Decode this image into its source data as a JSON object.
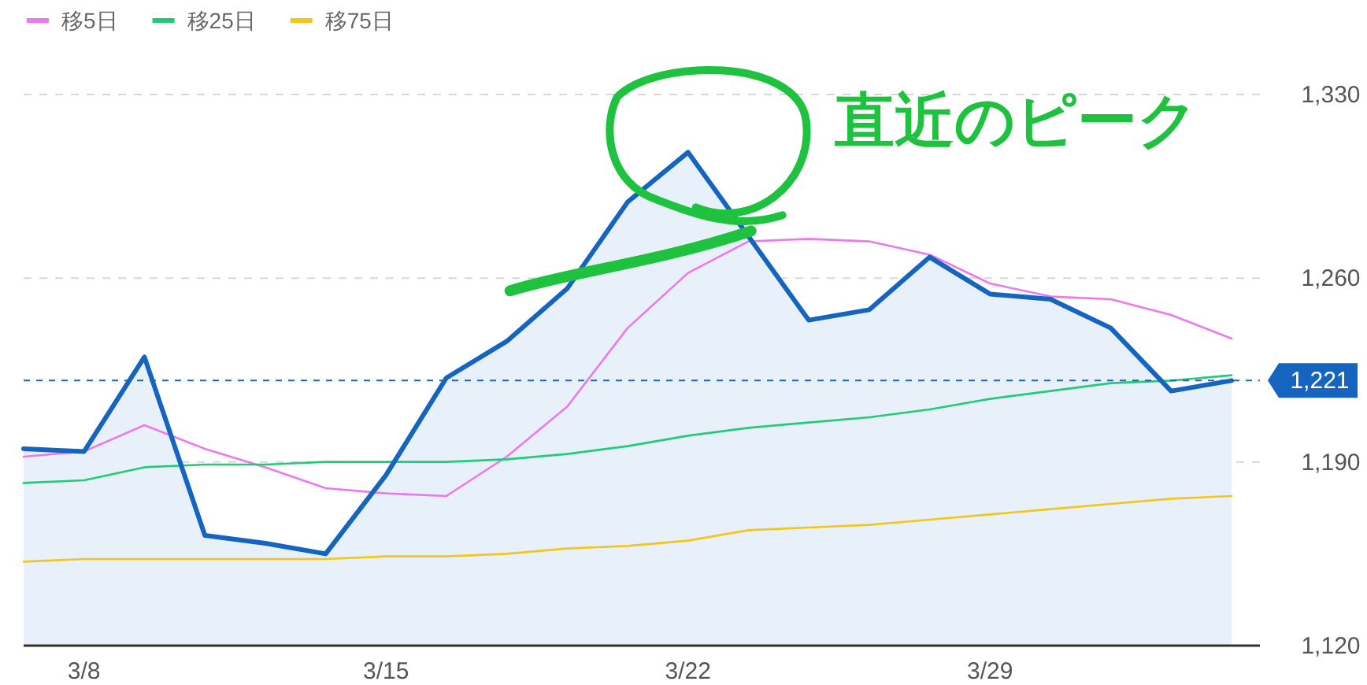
{
  "chart_data": {
    "type": "line",
    "categories": [
      null,
      "3/8",
      null,
      null,
      null,
      null,
      "3/15",
      null,
      null,
      null,
      null,
      "3/22",
      null,
      null,
      null,
      null,
      "3/29",
      null,
      null,
      null,
      null
    ],
    "series": [
      {
        "type": "area",
        "color": "#1565c0",
        "values": [
          1195,
          1194,
          1230,
          1162,
          1159,
          1155,
          1185,
          1222,
          1236,
          1256,
          1289,
          1308,
          1276,
          1244,
          1248,
          1268,
          1254,
          1252,
          1241,
          1217,
          1221
        ]
      },
      {
        "name": "移5日",
        "color": "#ee77ee",
        "values": [
          1192,
          1194,
          1204,
          1195,
          1188,
          1180,
          1178,
          1177,
          1192,
          1211,
          1241,
          1262,
          1274,
          1275,
          1274,
          1269,
          1258,
          1253,
          1252,
          1246,
          1237
        ]
      },
      {
        "name": "移25日",
        "color": "#22cc77",
        "values": [
          1182,
          1183,
          1188,
          1189,
          1189,
          1190,
          1190,
          1190,
          1191,
          1193,
          1196,
          1200,
          1203,
          1205,
          1207,
          1210,
          1214,
          1217,
          1220,
          1221,
          1223
        ]
      },
      {
        "name": "移75日",
        "color": "#f5c518",
        "values": [
          1152,
          1153,
          1153,
          1153,
          1153,
          1153,
          1154,
          1154,
          1155,
          1157,
          1158,
          1160,
          1164,
          1165,
          1166,
          1168,
          1170,
          1172,
          1174,
          1176,
          1177
        ]
      }
    ],
    "ylim": [
      1120,
      1330
    ],
    "yticks": [
      {
        "value": 1120,
        "label": "1,120"
      },
      {
        "value": 1190,
        "label": "1,190"
      },
      {
        "value": 1260,
        "label": "1,260"
      },
      {
        "value": 1330,
        "label": "1,330"
      }
    ],
    "ref_lines": [
      {
        "axis": "y",
        "value": 1221,
        "label": "1,221",
        "color": "#1565c0",
        "line_style": "dashed"
      }
    ],
    "annotations": [
      {
        "text": "直近のピーク",
        "x": "3/22",
        "y": 1308
      }
    ],
    "grid": "y",
    "legend": "top left",
    "line_style": "solid",
    "marker": "none"
  }
}
